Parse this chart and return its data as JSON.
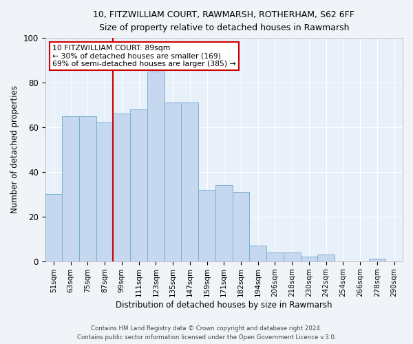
{
  "title1": "10, FITZWILLIAM COURT, RAWMARSH, ROTHERHAM, S62 6FF",
  "title2": "Size of property relative to detached houses in Rawmarsh",
  "xlabel": "Distribution of detached houses by size in Rawmarsh",
  "ylabel": "Number of detached properties",
  "bar_labels": [
    "51sqm",
    "63sqm",
    "75sqm",
    "87sqm",
    "99sqm",
    "111sqm",
    "123sqm",
    "135sqm",
    "147sqm",
    "159sqm",
    "171sqm",
    "182sqm",
    "194sqm",
    "206sqm",
    "218sqm",
    "230sqm",
    "242sqm",
    "254sqm",
    "266sqm",
    "278sqm",
    "290sqm"
  ],
  "bar_values": [
    30,
    65,
    65,
    62,
    66,
    68,
    85,
    71,
    71,
    32,
    34,
    31,
    7,
    4,
    4,
    2,
    3,
    0,
    0,
    1,
    0
  ],
  "bar_color": "#c5d8ef",
  "bar_edge_color": "#7aafd4",
  "vline_x_index": 3.5,
  "annotation_title": "10 FITZWILLIAM COURT: 89sqm",
  "annotation_line1": "← 30% of detached houses are smaller (169)",
  "annotation_line2": "69% of semi-detached houses are larger (385) →",
  "vline_color": "#cc0000",
  "annotation_box_edge": "#cc0000",
  "ylim": [
    0,
    100
  ],
  "yticks": [
    0,
    20,
    40,
    60,
    80,
    100
  ],
  "footer1": "Contains HM Land Registry data © Crown copyright and database right 2024.",
  "footer2": "Contains public sector information licensed under the Open Government Licence v.3.0.",
  "bg_color": "#e8f0fa",
  "fig_bg_color": "#f0f4f8",
  "grid_color": "#ffffff"
}
